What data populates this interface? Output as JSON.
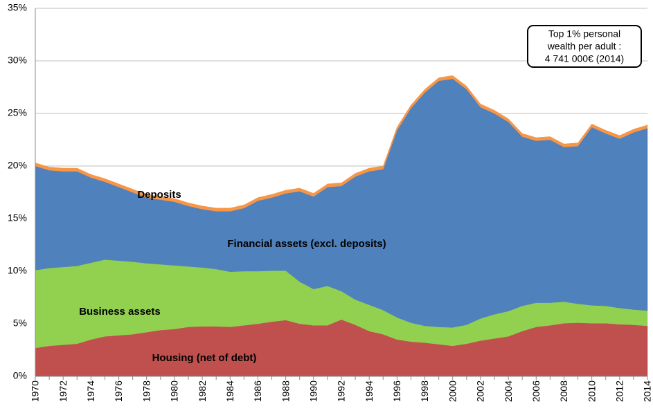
{
  "chart_data": {
    "type": "stacked-area",
    "categories": [
      "1970",
      null,
      "1972",
      null,
      "1974",
      null,
      "1976",
      null,
      "1978",
      null,
      "1980",
      null,
      "1982",
      null,
      "1984",
      null,
      "1986",
      null,
      "1988",
      null,
      "1990",
      null,
      "1992",
      null,
      "1994",
      null,
      "1996",
      null,
      "1998",
      null,
      "2000",
      null,
      "2002",
      null,
      "2004",
      null,
      "2006",
      null,
      "2008",
      null,
      "2010",
      null,
      "2012",
      null,
      "2014"
    ],
    "series": [
      {
        "name": "Housing (net of debt)",
        "color": "#c0504d",
        "values": [
          2.7,
          2.9,
          3.0,
          3.1,
          3.5,
          3.8,
          3.9,
          4.0,
          4.2,
          4.4,
          4.5,
          4.7,
          4.75,
          4.75,
          4.7,
          4.85,
          5.0,
          5.2,
          5.35,
          5.0,
          4.85,
          4.85,
          5.4,
          4.9,
          4.3,
          4.0,
          3.5,
          3.3,
          3.2,
          3.05,
          2.9,
          3.1,
          3.4,
          3.6,
          3.8,
          4.3,
          4.7,
          4.85,
          5.05,
          5.1,
          5.05,
          5.05,
          4.95,
          4.9,
          4.8
        ]
      },
      {
        "name": "Business assets",
        "color": "#92d050",
        "values": [
          7.4,
          7.4,
          7.4,
          7.4,
          7.3,
          7.3,
          7.1,
          6.9,
          6.55,
          6.25,
          6.05,
          5.75,
          5.6,
          5.45,
          5.25,
          5.15,
          5.0,
          4.85,
          4.7,
          4.0,
          3.45,
          3.75,
          2.7,
          2.4,
          2.5,
          2.3,
          2.1,
          1.8,
          1.6,
          1.65,
          1.75,
          1.8,
          2.1,
          2.3,
          2.4,
          2.4,
          2.3,
          2.15,
          2.05,
          1.8,
          1.7,
          1.65,
          1.55,
          1.45,
          1.45
        ]
      },
      {
        "name": "Financial assets  (excl. deposits)",
        "color": "#4f81bd",
        "values": [
          9.9,
          9.3,
          9.1,
          9.0,
          8.1,
          7.4,
          7.0,
          6.6,
          6.25,
          6.15,
          6.05,
          5.75,
          5.55,
          5.5,
          5.75,
          6.0,
          6.7,
          6.95,
          7.35,
          8.6,
          8.8,
          9.4,
          10.0,
          11.7,
          12.7,
          13.4,
          17.8,
          20.4,
          22.2,
          23.4,
          23.65,
          22.4,
          20.1,
          19.1,
          18.0,
          16.1,
          15.4,
          15.5,
          14.7,
          15.0,
          16.95,
          16.4,
          16.1,
          16.85,
          17.35
        ]
      },
      {
        "name": "Deposits",
        "color": "#f79646",
        "values": [
          0.3,
          0.3,
          0.3,
          0.3,
          0.3,
          0.3,
          0.3,
          0.3,
          0.3,
          0.3,
          0.3,
          0.3,
          0.3,
          0.3,
          0.3,
          0.3,
          0.3,
          0.3,
          0.3,
          0.3,
          0.3,
          0.3,
          0.3,
          0.3,
          0.3,
          0.3,
          0.3,
          0.3,
          0.3,
          0.3,
          0.3,
          0.3,
          0.3,
          0.3,
          0.3,
          0.3,
          0.3,
          0.3,
          0.3,
          0.3,
          0.3,
          0.3,
          0.3,
          0.3,
          0.3
        ]
      }
    ],
    "annotation": [
      "Top 1% personal",
      "wealth per adult :",
      "4 741 000€ (2014)"
    ],
    "ylim": [
      0,
      35
    ],
    "yticks": [
      {
        "value": 0,
        "label": "0%"
      },
      {
        "value": 5,
        "label": "5%"
      },
      {
        "value": 10,
        "label": "10%"
      },
      {
        "value": 15,
        "label": "15%"
      },
      {
        "value": 20,
        "label": "20%"
      },
      {
        "value": 25,
        "label": "25%"
      },
      {
        "value": 30,
        "label": "30%"
      },
      {
        "value": 35,
        "label": "35%"
      }
    ],
    "grid": true
  }
}
